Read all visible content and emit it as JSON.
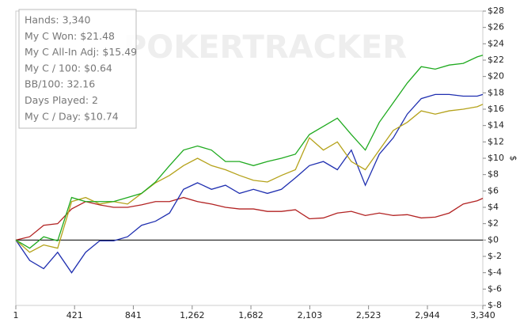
{
  "chart_data": {
    "type": "line",
    "y_axis_label": "$",
    "watermark": "POKERTRACKER",
    "annotations": [
      "Hands: 3,340",
      "My C Won: $21.48",
      "My C All-In Adj: $15.49",
      "My C / 100: $0.64",
      "BB/100: 32.16",
      "Days Played: 2",
      "My C / Day: $10.74"
    ],
    "x": [
      1,
      100,
      200,
      300,
      400,
      500,
      600,
      700,
      800,
      900,
      1000,
      1100,
      1200,
      1300,
      1400,
      1500,
      1600,
      1700,
      1800,
      1900,
      2000,
      2100,
      2200,
      2300,
      2400,
      2500,
      2600,
      2700,
      2800,
      2900,
      3000,
      3100,
      3200,
      3300,
      3340
    ],
    "series": [
      {
        "color": "#b22222",
        "values": [
          0,
          0.4,
          1.8,
          2,
          3.8,
          4.7,
          4.3,
          4,
          4,
          4.3,
          4.7,
          4.7,
          5.2,
          4.7,
          4.4,
          4,
          3.8,
          3.8,
          3.5,
          3.5,
          3.7,
          2.6,
          2.7,
          3.3,
          3.5,
          3,
          3.3,
          3,
          3.1,
          2.7,
          2.8,
          3.3,
          4.4,
          4.8,
          5.1
        ]
      },
      {
        "color": "#1f2fb0",
        "values": [
          0,
          -2.5,
          -3.5,
          -1.5,
          -4,
          -1.5,
          -0.1,
          -0.1,
          0.4,
          1.8,
          2.3,
          3.3,
          6.2,
          7,
          6.2,
          6.7,
          5.7,
          6.2,
          5.7,
          6.2,
          7.6,
          9.1,
          9.6,
          8.6,
          11,
          6.7,
          10.5,
          12.5,
          15.4,
          17.3,
          17.8,
          17.8,
          17.6,
          17.6,
          17.8
        ]
      },
      {
        "color": "#b5a21a",
        "values": [
          0,
          -1.5,
          -0.6,
          -1,
          4.7,
          5.2,
          4.4,
          4.7,
          4.4,
          5.7,
          7,
          7.9,
          9.1,
          10,
          9.1,
          8.6,
          7.9,
          7.3,
          7.1,
          7.9,
          8.6,
          12.5,
          11,
          12,
          9.6,
          8.6,
          11,
          13.4,
          14.4,
          15.8,
          15.4,
          15.8,
          16,
          16.3,
          16.6
        ]
      },
      {
        "color": "#1faa1f",
        "values": [
          0,
          -1,
          0.4,
          -0.1,
          5.2,
          4.7,
          4.7,
          4.7,
          5.2,
          5.7,
          7.1,
          9.1,
          11,
          11.5,
          11,
          9.6,
          9.6,
          9.1,
          9.6,
          10,
          10.5,
          12.9,
          13.9,
          14.9,
          12.9,
          11,
          14.4,
          16.8,
          19.2,
          21.2,
          20.9,
          21.4,
          21.6,
          22.4,
          22.6
        ]
      }
    ],
    "xlim": [
      1,
      3340
    ],
    "xticks": [
      1,
      421,
      841,
      {
        "value": 1262,
        "label": "1,262"
      },
      {
        "value": 1682,
        "label": "1,682"
      },
      {
        "value": 2103,
        "label": "2,103"
      },
      {
        "value": 2523,
        "label": "2,523"
      },
      {
        "value": 2944,
        "label": "2,944"
      },
      {
        "value": 3340,
        "label": "3,340"
      }
    ],
    "ylim": [
      -8,
      28
    ],
    "yticks": [
      {
        "value": -8,
        "label": "$-8"
      },
      {
        "value": -6,
        "label": "$-6"
      },
      {
        "value": -4,
        "label": "$-4"
      },
      {
        "value": -2,
        "label": "$-2"
      },
      {
        "value": 0,
        "label": "$0"
      },
      {
        "value": 2,
        "label": "$2"
      },
      {
        "value": 4,
        "label": "$4"
      },
      {
        "value": 6,
        "label": "$6"
      },
      {
        "value": 8,
        "label": "$8"
      },
      {
        "value": 10,
        "label": "$10"
      },
      {
        "value": 12,
        "label": "$12"
      },
      {
        "value": 14,
        "label": "$14"
      },
      {
        "value": 16,
        "label": "$16"
      },
      {
        "value": 18,
        "label": "$18"
      },
      {
        "value": 20,
        "label": "$20"
      },
      {
        "value": 22,
        "label": "$22"
      },
      {
        "value": 24,
        "label": "$24"
      },
      {
        "value": 26,
        "label": "$26"
      },
      {
        "value": 28,
        "label": "$28"
      }
    ],
    "zero_line": true
  }
}
